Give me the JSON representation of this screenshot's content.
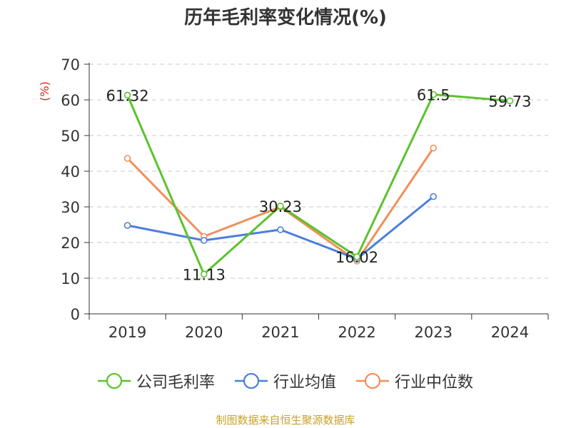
{
  "chart_data": {
    "type": "line",
    "title": "历年毛利率变化情况(%)",
    "ylabel": "(%)",
    "ylim": [
      0,
      70
    ],
    "yticks": [
      0,
      10,
      20,
      30,
      40,
      50,
      60,
      70
    ],
    "categories": [
      "2019",
      "2020",
      "2021",
      "2022",
      "2023",
      "2024"
    ],
    "grid": true,
    "legend_position": "bottom",
    "series": [
      {
        "name": "公司毛利率",
        "color": "#5cc22e",
        "values": [
          61.32,
          11.13,
          30.23,
          16.02,
          61.5,
          59.73
        ],
        "labels": [
          "61.32",
          "11.13",
          "30.23",
          "16.02",
          "61.5",
          "59.73"
        ]
      },
      {
        "name": "行业均值",
        "color": "#4a7fd9",
        "values": [
          24.8,
          20.6,
          23.6,
          15.4,
          32.9,
          null
        ]
      },
      {
        "name": "行业中位数",
        "color": "#f0905a",
        "values": [
          43.6,
          21.7,
          30.0,
          14.8,
          46.5,
          null
        ]
      }
    ]
  },
  "source": "制图数据来自恒生聚源数据库"
}
